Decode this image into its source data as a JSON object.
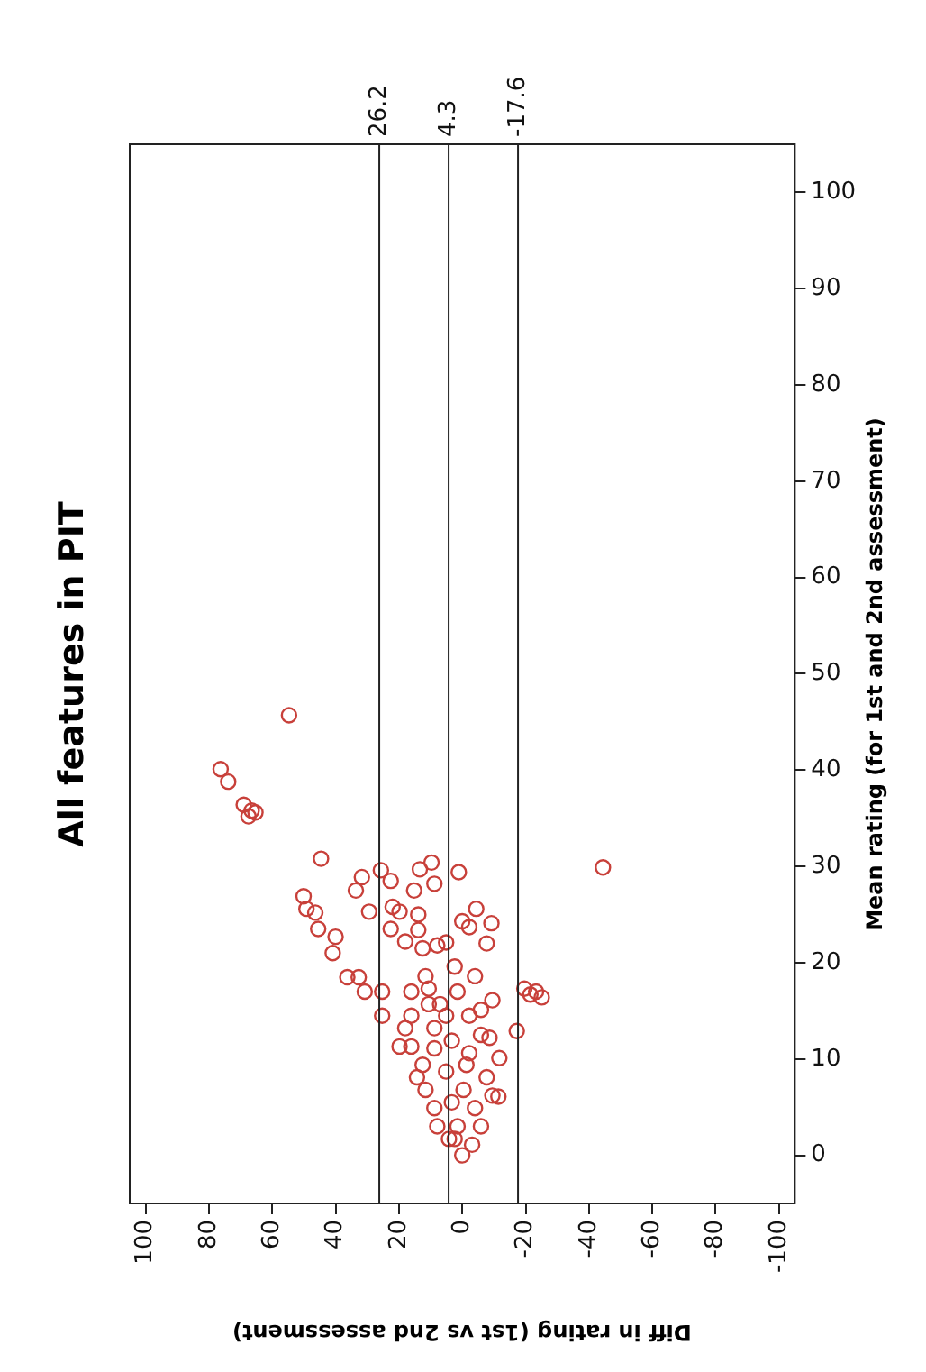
{
  "chart_data": {
    "type": "scatter",
    "title": "All features in PIT",
    "xlabel": "Diff in rating (1st vs 2nd assessment)",
    "ylabel": "Mean rating (for 1st and 2nd assessment)",
    "x": [
      54.7,
      76.3,
      73.9,
      69,
      66.5,
      67.5,
      65.3,
      44.6,
      -44.4,
      50.1,
      49.2,
      46.4,
      45.5,
      40,
      40.9,
      36.3,
      32.7,
      33.6,
      31.7,
      29.4,
      25.7,
      22.6,
      22,
      19.8,
      22.6,
      18,
      15.2,
      13.4,
      9.7,
      8.8,
      13.9,
      13.9,
      12.5,
      7.9,
      5.1,
      1.1,
      0,
      -2.2,
      -4.4,
      -9.2,
      -7.7,
      11.6,
      10.6,
      2.4,
      -4,
      1.5,
      -9.5,
      -5.9,
      -19.6,
      -23.3,
      -25.1,
      -21.5,
      -17.2,
      -8.6,
      -11.7,
      -11.4,
      -7.7,
      16.1,
      8.8,
      30.8,
      25.3,
      19.8,
      14.3,
      8.8,
      4.2,
      0,
      -9.5,
      -5.9,
      -3.1,
      16.1,
      18,
      12.5,
      5.1,
      3.3,
      1.5,
      5.1,
      3.3,
      -2.2,
      -0.4,
      -4,
      2.4,
      25.3,
      16.1,
      8.8,
      7,
      -2.2,
      -5.9,
      11.6,
      7.9,
      -1.3,
      10.6
    ],
    "values": [
      45.7,
      40.1,
      38.8,
      36.4,
      35.8,
      35.2,
      35.6,
      30.8,
      29.9,
      26.9,
      25.6,
      25.2,
      23.5,
      22.7,
      21,
      18.5,
      18.5,
      27.5,
      28.9,
      25.3,
      29.6,
      28.5,
      25.8,
      25.3,
      23.5,
      22.2,
      27.5,
      29.7,
      30.4,
      28.2,
      25,
      23.4,
      21.5,
      21.8,
      22.1,
      29.4,
      24.3,
      23.7,
      25.6,
      24.1,
      22,
      18.6,
      17.3,
      19.6,
      18.6,
      17,
      16.1,
      15.1,
      17.3,
      17,
      16.4,
      16.7,
      12.9,
      12.2,
      10.1,
      6.1,
      8.1,
      11.3,
      11.1,
      17,
      14.5,
      11.3,
      8.1,
      4.9,
      1.7,
      0,
      6.2,
      3,
      1.1,
      17,
      13.2,
      9.4,
      8.7,
      5.5,
      3,
      14.5,
      11.9,
      10.6,
      6.8,
      4.9,
      1.7,
      17,
      14.5,
      13.2,
      15.7,
      14.5,
      12.5,
      6.8,
      3,
      9.4,
      15.7
    ],
    "color": "#c8403a",
    "marker": "circle",
    "xlim": [
      105,
      -105
    ],
    "xticks": [
      100,
      80,
      60,
      40,
      20,
      0,
      -20,
      -40,
      -60,
      -80,
      -100
    ],
    "ylim": [
      -5,
      105
    ],
    "yticks": [
      0,
      10,
      20,
      30,
      40,
      50,
      60,
      70,
      80,
      90,
      100
    ],
    "ref_lines": [
      {
        "axis": "x",
        "value": 26.2,
        "label": "26.2"
      },
      {
        "axis": "x",
        "value": 4.3,
        "label": "4.3"
      },
      {
        "axis": "x",
        "value": -17.6,
        "label": "-17.6"
      }
    ]
  }
}
